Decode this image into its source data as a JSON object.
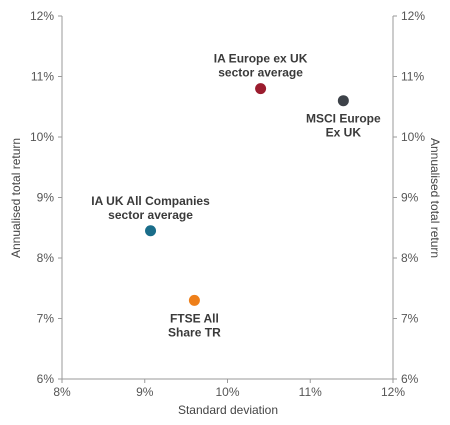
{
  "chart_data": {
    "type": "scatter",
    "xlabel": "Standard deviation",
    "ylabel": "Annualised total return",
    "ylabel_right": "Annualised total return",
    "xlim": [
      8,
      12
    ],
    "ylim": [
      6,
      12
    ],
    "x_ticks": [
      8,
      9,
      10,
      11,
      12
    ],
    "x_tick_labels": [
      "8%",
      "9%",
      "10%",
      "11%",
      "12%"
    ],
    "y_ticks": [
      6,
      7,
      8,
      9,
      10,
      11,
      12
    ],
    "y_tick_labels": [
      "6%",
      "7%",
      "8%",
      "9%",
      "10%",
      "11%",
      "12%"
    ],
    "grid": false,
    "points": [
      {
        "label_lines": [
          "IA Europe ex UK",
          "sector average"
        ],
        "x": 10.4,
        "y": 10.8,
        "color": "#9b1c2e",
        "label_position": "above"
      },
      {
        "label_lines": [
          "MSCI Europe",
          "Ex UK"
        ],
        "x": 11.4,
        "y": 10.6,
        "color": "#3d4249",
        "label_position": "below"
      },
      {
        "label_lines": [
          "IA UK All Companies",
          "sector average"
        ],
        "x": 9.07,
        "y": 8.45,
        "color": "#1a6d8a",
        "label_position": "above"
      },
      {
        "label_lines": [
          "FTSE All",
          "Share TR"
        ],
        "x": 9.6,
        "y": 7.3,
        "color": "#ee7f1a",
        "label_position": "below"
      }
    ]
  }
}
